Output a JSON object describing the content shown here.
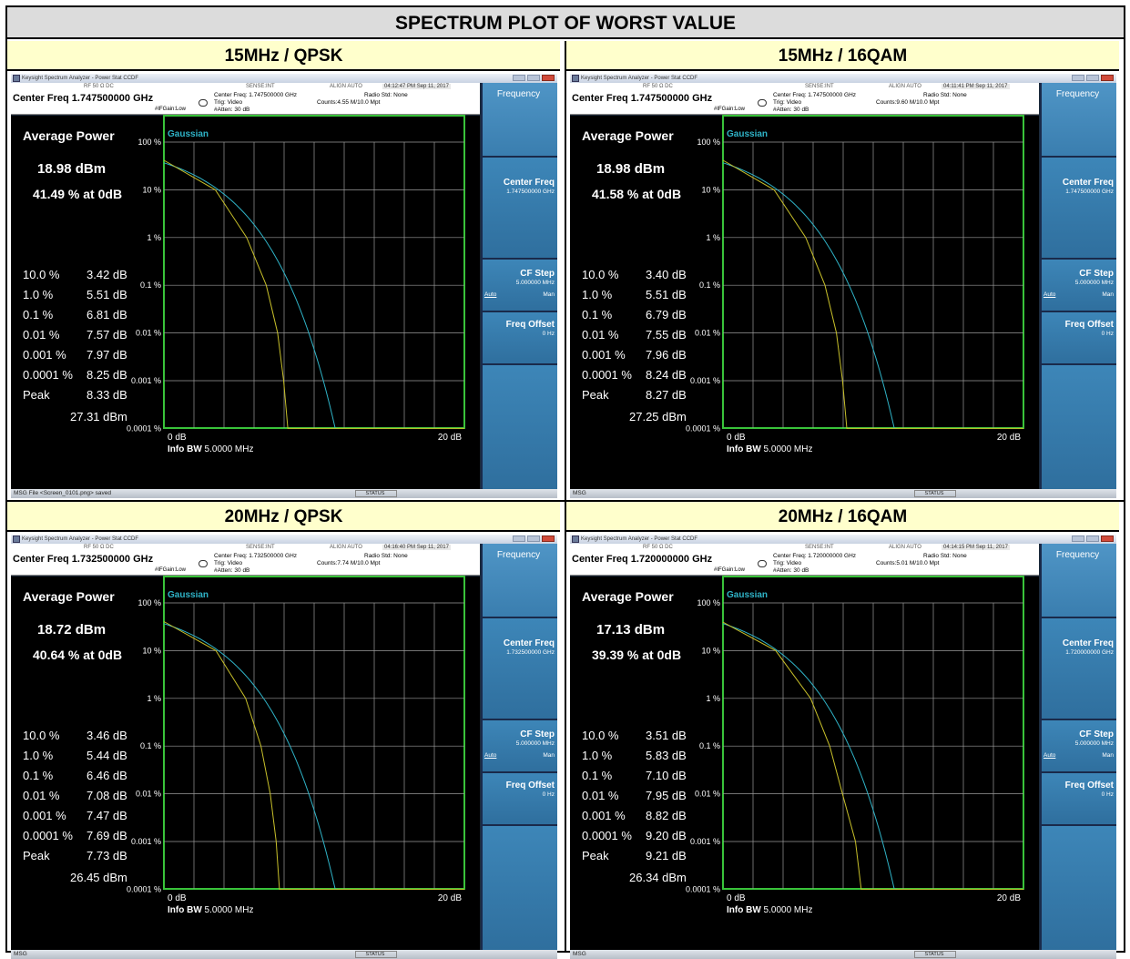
{
  "page_title": "SPECTRUM PLOT OF WORST VALUE",
  "panels": [
    {
      "header": "15MHz / QPSK",
      "window_title": "Keysight Spectrum Analyzer - Power Stat CCDF",
      "timestamp": "04:12:47 PM Sep 11, 2017",
      "center_freq": "Center Freq 1.747500000 GHz",
      "center_freq_line": "Center Freq: 1.747500000 GHz",
      "counts": "Counts:4.55 M/10.0 Mpt",
      "cf_value": "1.747500000 GHz",
      "average_power": "18.98 dBm",
      "pct_at_0db": "41.49 % at 0dB",
      "stats": [
        {
          "label": "10.0 %",
          "value": "3.42 dB"
        },
        {
          "label": "1.0 %",
          "value": "5.51 dB"
        },
        {
          "label": "0.1 %",
          "value": "6.81 dB"
        },
        {
          "label": "0.01 %",
          "value": "7.57 dB"
        },
        {
          "label": "0.001 %",
          "value": "7.97 dB"
        },
        {
          "label": "0.0001 %",
          "value": "8.25 dB"
        },
        {
          "label": "Peak",
          "value": "8.33 dB"
        }
      ],
      "peak_dbm": "27.31 dBm",
      "status_msg": "File <Screen_0101.png> saved"
    },
    {
      "header": "15MHz / 16QAM",
      "window_title": "Keysight Spectrum Analyzer - Power Stat CCDF",
      "timestamp": "04:11:41 PM Sep 11, 2017",
      "center_freq": "Center Freq 1.747500000 GHz",
      "center_freq_line": "Center Freq: 1.747500000 GHz",
      "counts": "Counts:9.60 M/10.0 Mpt",
      "cf_value": "1.747500000 GHz",
      "average_power": "18.98 dBm",
      "pct_at_0db": "41.58 % at 0dB",
      "stats": [
        {
          "label": "10.0 %",
          "value": "3.40 dB"
        },
        {
          "label": "1.0 %",
          "value": "5.51 dB"
        },
        {
          "label": "0.1 %",
          "value": "6.79 dB"
        },
        {
          "label": "0.01 %",
          "value": "7.55 dB"
        },
        {
          "label": "0.001 %",
          "value": "7.96 dB"
        },
        {
          "label": "0.0001 %",
          "value": "8.24 dB"
        },
        {
          "label": "Peak",
          "value": "8.27 dB"
        }
      ],
      "peak_dbm": "27.25 dBm",
      "status_msg": ""
    },
    {
      "header": "20MHz / QPSK",
      "window_title": "Keysight Spectrum Analyzer - Power Stat CCDF",
      "timestamp": "04:16:40 PM Sep 11, 2017",
      "center_freq": "Center Freq 1.732500000 GHz",
      "center_freq_line": "Center Freq: 1.732500000 GHz",
      "counts": "Counts:7.74 M/10.0 Mpt",
      "cf_value": "1.732500000 GHz",
      "average_power": "18.72 dBm",
      "pct_at_0db": "40.64 % at 0dB",
      "stats": [
        {
          "label": "10.0 %",
          "value": "3.46 dB"
        },
        {
          "label": "1.0 %",
          "value": "5.44 dB"
        },
        {
          "label": "0.1 %",
          "value": "6.46 dB"
        },
        {
          "label": "0.01 %",
          "value": "7.08 dB"
        },
        {
          "label": "0.001 %",
          "value": "7.47 dB"
        },
        {
          "label": "0.0001 %",
          "value": "7.69 dB"
        },
        {
          "label": "Peak",
          "value": "7.73 dB"
        }
      ],
      "peak_dbm": "26.45 dBm",
      "status_msg": ""
    },
    {
      "header": "20MHz / 16QAM",
      "window_title": "Keysight Spectrum Analyzer - Power Stat CCDF",
      "timestamp": "04:14:15 PM Sep 11, 2017",
      "center_freq": "Center Freq 1.720000000 GHz",
      "center_freq_line": "Center Freq: 1.720000000 GHz",
      "counts": "Counts:5.01 M/10.0 Mpt",
      "cf_value": "1.720000000 GHz",
      "average_power": "17.13 dBm",
      "pct_at_0db": "39.39 % at 0dB",
      "stats": [
        {
          "label": "10.0 %",
          "value": "3.51 dB"
        },
        {
          "label": "1.0 %",
          "value": "5.83 dB"
        },
        {
          "label": "0.1 %",
          "value": "7.10 dB"
        },
        {
          "label": "0.01 %",
          "value": "7.95 dB"
        },
        {
          "label": "0.001 %",
          "value": "8.82 dB"
        },
        {
          "label": "0.0001 %",
          "value": "9.20 dB"
        },
        {
          "label": "Peak",
          "value": "9.21 dB"
        }
      ],
      "peak_dbm": "26.34 dBm",
      "status_msg": ""
    }
  ],
  "common": {
    "rf_flags": "RF   50 Ω  DC",
    "sense": "SENSE:INT",
    "align": "ALIGN AUTO",
    "trig": "Trig: Video",
    "atten": "#Atten: 30 dB",
    "ifgain": "#IFGain:Low",
    "radio_std": "Radio Std: None",
    "average_power_label": "Average Power",
    "gaussian_label": "Gaussian",
    "y_ticks": [
      "100 %",
      "10 %",
      "1 %",
      "0.1 %",
      "0.01 %",
      "0.001 %",
      "0.0001 %"
    ],
    "x_start": "0 dB",
    "x_end": "20 dB",
    "info_bw_label": "Info BW",
    "info_bw_value": "5.0000 MHz",
    "softkeys": {
      "menu": "Frequency",
      "center_freq": "Center Freq",
      "cf_step": "CF Step",
      "cf_step_value": "5.000000 MHz",
      "auto": "Auto",
      "man": "Man",
      "freq_offset": "Freq Offset",
      "freq_offset_value": "0 Hz"
    },
    "msg_label": "MSG",
    "status_label": "STATUS"
  },
  "colors": {
    "gaussian_curve": "#2fb3c7",
    "measured_curve": "#c8c02a",
    "plot_border": "#39c33a",
    "softkey": "#3479ab"
  }
}
